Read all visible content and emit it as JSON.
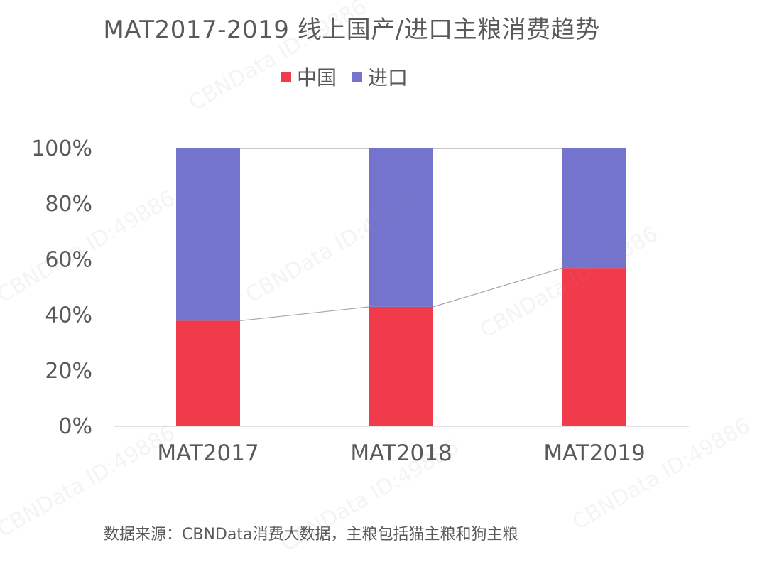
{
  "chart_data": {
    "type": "bar",
    "stacked": true,
    "title": "MAT2017-2019 线上国产/进口主粮消费趋势",
    "categories": [
      "MAT2017",
      "MAT2018",
      "MAT2019"
    ],
    "series": [
      {
        "name": "中国",
        "color": "#f23b4a",
        "values": [
          38,
          43,
          57
        ]
      },
      {
        "name": "进口",
        "color": "#7474cf",
        "values": [
          62,
          57,
          43
        ]
      }
    ],
    "ylim": [
      0,
      100
    ],
    "yticks": [
      "0%",
      "20%",
      "40%",
      "60%",
      "80%",
      "100%"
    ],
    "ytick_values": [
      0,
      20,
      40,
      60,
      80,
      100
    ],
    "legend_position": "top",
    "grid": false,
    "connector_lines": true
  },
  "source_note": "数据来源：CBNData消费大数据，主粮包括猫主粮和狗主粮",
  "watermark_text": "CBNData ID:49886"
}
